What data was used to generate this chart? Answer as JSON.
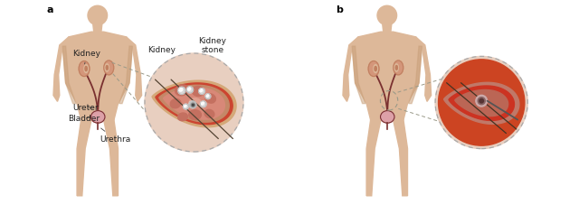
{
  "fig_bg": "#ffffff",
  "skin_color": "#ddb899",
  "skin_mid": "#c9a07a",
  "skin_dark": "#b08060",
  "kidney_outer": "#c08060",
  "kidney_inner": "#d4967a",
  "ureter_color": "#7a3030",
  "bladder_color": "#dda0a8",
  "cross_bg": "#e8cfc0",
  "cross_dash": "#aaaaaa",
  "leaf_tan1": "#d4a878",
  "leaf_red": "#cc4433",
  "leaf_tan2": "#c89070",
  "leaf_pink": "#e0907a",
  "lobe_dark": "#cc7060",
  "stone_gray": "#cccccc",
  "stone_white": "#eeeeee",
  "instr_gray": "#aaaaaa",
  "instr_dark": "#555555",
  "line_dark": "#444422",
  "panel_a": "a",
  "panel_b": "b",
  "lbl_kidney": "Kidney",
  "lbl_stone": "Kidney\nstone",
  "lbl_ureter": "Ureter",
  "lbl_bladder": "Bladder",
  "lbl_urethra": "Urethra",
  "fs_panel": 8,
  "fs_label": 6.5
}
